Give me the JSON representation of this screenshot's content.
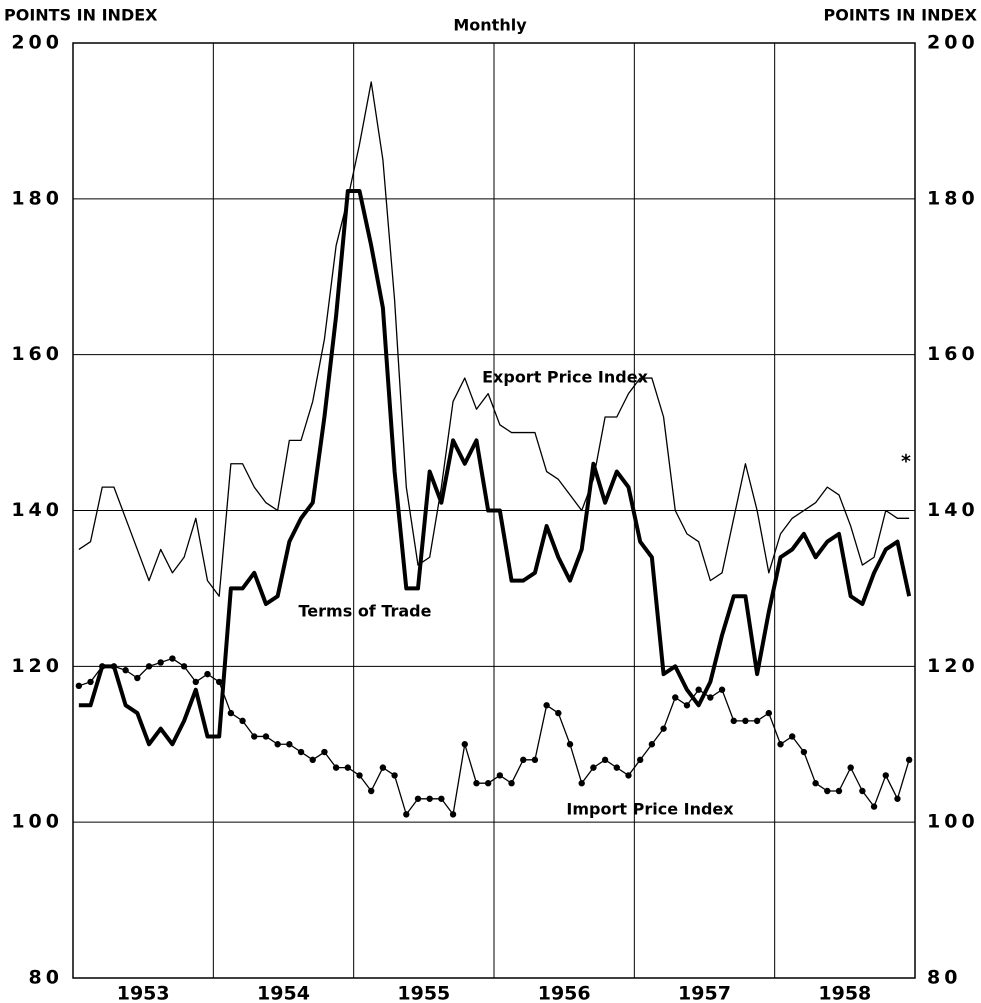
{
  "chart_data": {
    "type": "line",
    "title": "Monthly",
    "y_label": "POINTS IN INDEX",
    "y2_label": "POINTS IN INDEX",
    "categories": [
      "1953",
      "1954",
      "1955",
      "1956",
      "1957",
      "1958"
    ],
    "ylim": [
      80,
      200
    ],
    "yticks": [
      80,
      100,
      120,
      140,
      160,
      180,
      200
    ],
    "y2lim": [
      80,
      200
    ],
    "y2ticks": [
      80,
      100,
      120,
      140,
      160,
      180,
      200
    ],
    "grid": true,
    "series": [
      {
        "name": "Export Price Index",
        "color": "#000000",
        "line_width": 1.3,
        "values": [
          [
            135,
            136,
            143,
            143,
            139,
            135,
            131,
            135,
            132,
            134,
            139,
            131
          ],
          [
            129,
            146,
            146,
            143,
            141,
            140,
            149,
            149,
            154,
            162,
            174,
            180
          ],
          [
            187,
            195,
            185,
            167,
            143,
            133,
            134,
            143,
            154,
            157,
            153,
            155
          ],
          [
            151,
            150,
            150,
            150,
            145,
            144,
            142,
            140,
            144,
            152,
            152,
            155
          ],
          [
            157,
            157,
            152,
            140,
            137,
            136,
            131,
            132,
            139,
            146,
            140,
            132
          ],
          [
            137,
            139,
            140,
            141,
            143,
            142,
            138,
            133,
            134,
            140,
            139,
            139
          ]
        ]
      },
      {
        "name": "Terms of Trade",
        "color": "#000000",
        "line_width": 4,
        "values": [
          [
            115,
            115,
            120,
            120,
            115,
            114,
            110,
            112,
            110,
            113,
            117,
            111
          ],
          [
            111,
            130,
            130,
            132,
            128,
            129,
            136,
            139,
            141,
            152,
            165,
            181
          ],
          [
            181,
            174,
            166,
            145,
            130,
            130,
            145,
            141,
            149,
            146,
            149,
            140
          ],
          [
            140,
            131,
            131,
            132,
            138,
            134,
            131,
            135,
            146,
            141,
            145,
            143
          ],
          [
            136,
            134,
            119,
            120,
            117,
            115,
            118,
            124,
            129,
            129,
            119,
            127
          ],
          [
            134,
            135,
            137,
            134,
            136,
            137,
            129,
            128,
            132,
            135,
            136,
            129
          ]
        ]
      },
      {
        "name": "Import Price Index",
        "color": "#000000",
        "line_width": 1.3,
        "markers": true,
        "values": [
          [
            117.5,
            118,
            120,
            120,
            119.5,
            118.5,
            120,
            120.5,
            121,
            120,
            118,
            119
          ],
          [
            118,
            114,
            113,
            111,
            111,
            110,
            110,
            109,
            108,
            109,
            107,
            107
          ],
          [
            106,
            104,
            107,
            106,
            101,
            103,
            103,
            103,
            101,
            110,
            105,
            105
          ],
          [
            106,
            105,
            108,
            108,
            115,
            114,
            110,
            105,
            107,
            108,
            107,
            106
          ],
          [
            108,
            110,
            112,
            116,
            115,
            117,
            116,
            117,
            113,
            113,
            113,
            114
          ],
          [
            110,
            111,
            109,
            105,
            104,
            104,
            107,
            104,
            102,
            106,
            103,
            108
          ]
        ]
      }
    ],
    "annotations": [
      {
        "text": "Export Price Index",
        "series": 0
      },
      {
        "text": "Terms of Trade",
        "series": 1
      },
      {
        "text": "Import Price Index",
        "series": 2
      },
      {
        "text": "*"
      }
    ]
  }
}
